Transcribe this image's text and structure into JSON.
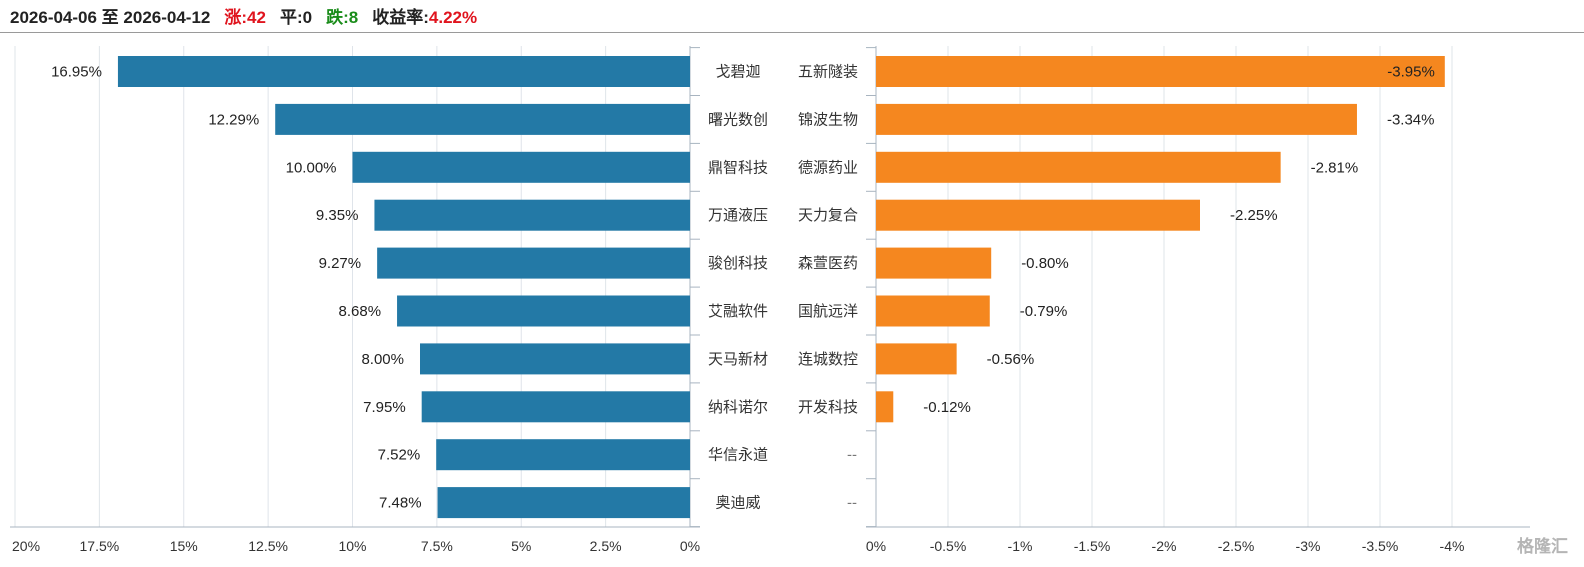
{
  "header": {
    "date_range": "2026-04-06 至 2026-04-12",
    "up_label": "涨:",
    "up_count": "42",
    "flat_label": "平:",
    "flat_count": "0",
    "down_label": "跌:",
    "down_count": "8",
    "return_label": "收益率:",
    "return_value": "4.22%"
  },
  "watermark": "格隆汇",
  "colors": {
    "gain_bar": "#2379a6",
    "loss_bar": "#f5871f",
    "up_text": "#e0141e",
    "down_text": "#1a8c1a",
    "grid": "#dfe4ea",
    "axis": "#a8b4c0"
  },
  "chart_data": [
    {
      "type": "bar",
      "orientation": "horizontal",
      "direction": "right-to-left",
      "categories": [
        "戈碧迦",
        "曙光数创",
        "鼎智科技",
        "万通液压",
        "骏创科技",
        "艾融软件",
        "天马新材",
        "纳科诺尔",
        "华信永道",
        "奥迪威"
      ],
      "values": [
        16.95,
        12.29,
        10.0,
        9.35,
        9.27,
        8.68,
        8.0,
        7.95,
        7.52,
        7.48
      ],
      "value_labels": [
        "16.95%",
        "12.29%",
        "10.00%",
        "9.35%",
        "9.27%",
        "8.68%",
        "8.00%",
        "7.95%",
        "7.52%",
        "7.48%"
      ],
      "xlim": [
        0,
        20
      ],
      "ticks": [
        0,
        2.5,
        5,
        7.5,
        10,
        12.5,
        15,
        17.5,
        20
      ],
      "tick_labels": [
        "0%",
        "2.5%",
        "5%",
        "7.5%",
        "10%",
        "12.5%",
        "15%",
        "17.5%",
        "20%"
      ],
      "grid": true
    },
    {
      "type": "bar",
      "orientation": "horizontal",
      "direction": "left-to-right",
      "categories": [
        "五新隧装",
        "锦波生物",
        "德源药业",
        "天力复合",
        "森萱医药",
        "国航远洋",
        "连城数控",
        "开发科技",
        "--",
        "--"
      ],
      "values": [
        -3.95,
        -3.34,
        -2.81,
        -2.25,
        -0.8,
        -0.79,
        -0.56,
        -0.12,
        null,
        null
      ],
      "value_labels": [
        "-3.95%",
        "-3.34%",
        "-2.81%",
        "-2.25%",
        "-0.80%",
        "-0.79%",
        "-0.56%",
        "-0.12%",
        "",
        ""
      ],
      "xlim": [
        0,
        -4.5
      ],
      "ticks": [
        0,
        -0.5,
        -1,
        -1.5,
        -2,
        -2.5,
        -3,
        -3.5,
        -4
      ],
      "tick_labels": [
        "0%",
        "-0.5%",
        "-1%",
        "-1.5%",
        "-2%",
        "-2.5%",
        "-3%",
        "-3.5%",
        "-4%"
      ],
      "grid": true
    }
  ]
}
